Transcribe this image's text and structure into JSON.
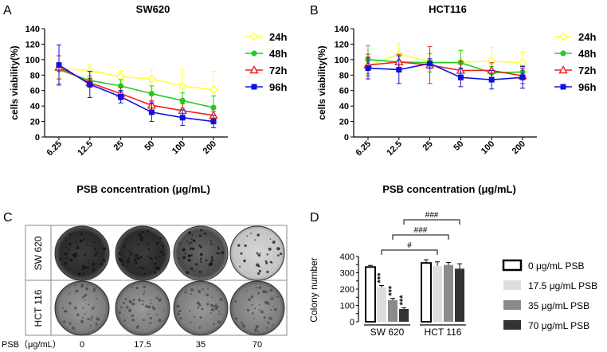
{
  "panel_letters": {
    "a": "A",
    "b": "B",
    "c": "C",
    "d": "D"
  },
  "chart_data": [
    {
      "id": "A",
      "type": "line",
      "title": "SW620",
      "xlabel": "PSB concentration (μg/mL)",
      "ylabel": "cells viability(%)",
      "categories": [
        "6.25",
        "12.5",
        "25",
        "50",
        "100",
        "200"
      ],
      "ylim": [
        0,
        140
      ],
      "yticks": [
        0,
        20,
        40,
        60,
        80,
        100,
        120,
        140
      ],
      "series": [
        {
          "name": "24h",
          "color": "#ffff33",
          "marker": "diamond",
          "values": [
            88,
            86,
            78,
            75,
            66,
            61
          ],
          "errors": [
            12,
            7,
            8,
            12,
            22,
            24
          ]
        },
        {
          "name": "48h",
          "color": "#22cc22",
          "marker": "circle",
          "values": [
            87,
            73,
            66,
            56,
            47,
            38
          ],
          "errors": [
            18,
            6,
            8,
            10,
            10,
            15
          ]
        },
        {
          "name": "72h",
          "color": "#ee2222",
          "marker": "triangle",
          "values": [
            90,
            70,
            56,
            41,
            34,
            28
          ],
          "errors": [
            15,
            6,
            8,
            6,
            9,
            5
          ]
        },
        {
          "name": "96h",
          "color": "#1111dd",
          "marker": "square",
          "values": [
            93,
            68,
            52,
            32,
            25,
            20
          ],
          "errors": [
            26,
            17,
            8,
            12,
            10,
            8
          ]
        }
      ]
    },
    {
      "id": "B",
      "type": "line",
      "title": "HCT116",
      "xlabel": "PSB concentration (μg/mL)",
      "ylabel": "cells viability(%)",
      "categories": [
        "6.25",
        "12.5",
        "25",
        "50",
        "100",
        "200"
      ],
      "ylim": [
        0,
        140
      ],
      "yticks": [
        0,
        20,
        40,
        60,
        80,
        100,
        120,
        140
      ],
      "series": [
        {
          "name": "24h",
          "color": "#ffff33",
          "marker": "diamond",
          "values": [
            92,
            107,
            97,
            97,
            98,
            96
          ],
          "errors": [
            12,
            14,
            10,
            14,
            18,
            14
          ]
        },
        {
          "name": "48h",
          "color": "#22cc22",
          "marker": "circle",
          "values": [
            100,
            97,
            96,
            96,
            83,
            84
          ],
          "errors": [
            18,
            10,
            12,
            16,
            8,
            8
          ]
        },
        {
          "name": "72h",
          "color": "#ee2222",
          "marker": "triangle",
          "values": [
            93,
            97,
            93,
            86,
            86,
            79
          ],
          "errors": [
            14,
            10,
            24,
            12,
            10,
            10
          ]
        },
        {
          "name": "96h",
          "color": "#1111dd",
          "marker": "square",
          "values": [
            89,
            87,
            95,
            77,
            74,
            77
          ],
          "errors": [
            14,
            18,
            6,
            12,
            12,
            14
          ]
        }
      ]
    },
    {
      "id": "D",
      "type": "bar",
      "ylabel": "Colony number",
      "ylim": [
        0,
        400
      ],
      "yticks": [
        0,
        50,
        100,
        150,
        200,
        250,
        300,
        350,
        400
      ],
      "groups": [
        "SW 620",
        "HCT 116"
      ],
      "legend": [
        "0 μg/mL PSB",
        "17.5 μg/mL PSB",
        "35 μg/mL PSB",
        "70 μg/mL PSB"
      ],
      "colors": [
        "#ffffff",
        "#dddddd",
        "#8a8a8a",
        "#333333"
      ],
      "values": [
        [
          335,
          210,
          133,
          78
        ],
        [
          360,
          342,
          348,
          325
        ]
      ],
      "errors": [
        [
          10,
          12,
          10,
          8
        ],
        [
          20,
          25,
          15,
          30
        ]
      ],
      "stars": [
        [
          "",
          "***",
          "***",
          "***"
        ],
        [
          "",
          "",
          "",
          ""
        ]
      ],
      "comparisons": [
        {
          "label": "#",
          "from": [
            0,
            1
          ],
          "to": [
            1,
            1
          ]
        },
        {
          "label": "###",
          "from": [
            0,
            2
          ],
          "to": [
            1,
            2
          ]
        },
        {
          "label": "###",
          "from": [
            0,
            3
          ],
          "to": [
            1,
            3
          ]
        }
      ]
    }
  ],
  "panel_c": {
    "rows": [
      "SW 620",
      "HCT 116"
    ],
    "row_label": "PSB（μg/mL）",
    "concentrations": [
      "0",
      "17.5",
      "35",
      "70"
    ]
  }
}
